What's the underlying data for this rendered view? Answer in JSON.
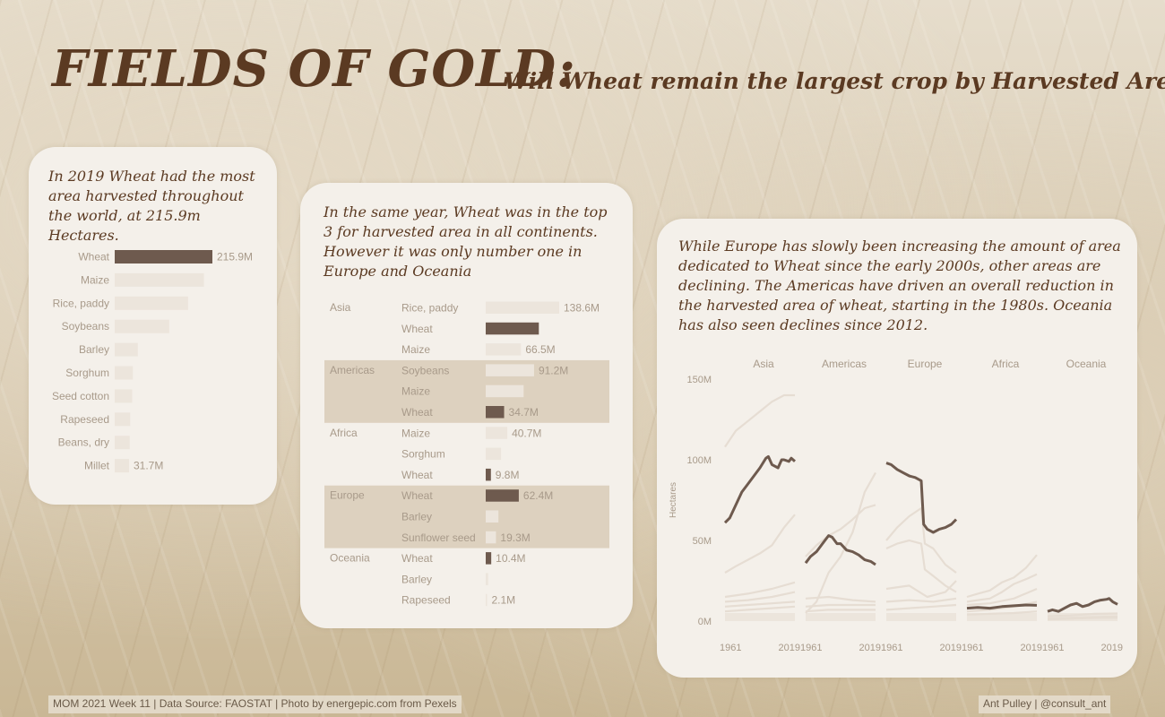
{
  "header": {
    "title": "FIELDS OF GOLD:",
    "subtitle": "Will Wheat remain the largest crop by Harvested Area?"
  },
  "card1": {
    "text": "In 2019 Wheat had the most area harvested throughout the world, at 215.9m Hectares."
  },
  "card2": {
    "text": "In the same year, Wheat was in the top 3 for harvested area in all continents. However it was only number one in Europe and Oceania"
  },
  "card3": {
    "text": "While Europe has slowly been increasing the amount of area dedicated to Wheat since the early 2000s, other areas are declining. The Americas have driven an overall reduction in the harvested area of wheat, starting in the 1980s. Oceania has also seen declines since 2012."
  },
  "colors": {
    "wheat": "#6e5a4e",
    "other": "#ece5dc",
    "band": "#ddd1bf",
    "text_brown": "#5b3a22",
    "label": "#a89a8a",
    "faint_line": "#e6ddd3"
  },
  "chart_data": [
    {
      "type": "bar",
      "orientation": "horizontal",
      "categories": [
        "Wheat",
        "Maize",
        "Rice, paddy",
        "Soybeans",
        "Barley",
        "Sorghum",
        "Seed cotton",
        "Rapeseed",
        "Beans, dry",
        "Millet"
      ],
      "values": [
        215.9,
        197.2,
        162.1,
        120.5,
        51.1,
        40.1,
        38.6,
        34.2,
        33.1,
        31.7
      ],
      "unit": "M",
      "value_labels": [
        "215.9M",
        "",
        "",
        "",
        "",
        "",
        "",
        "",
        "",
        "31.7M"
      ],
      "highlight": "Wheat"
    },
    {
      "type": "bar",
      "orientation": "horizontal",
      "groups": [
        {
          "name": "Asia",
          "banded": false,
          "items": [
            {
              "crop": "Rice, paddy",
              "value": 138.6,
              "label": "138.6M"
            },
            {
              "crop": "Wheat",
              "value": 100.2,
              "label": ""
            },
            {
              "crop": "Maize",
              "value": 66.5,
              "label": "66.5M"
            }
          ]
        },
        {
          "name": "Americas",
          "banded": true,
          "items": [
            {
              "crop": "Soybeans",
              "value": 91.2,
              "label": "91.2M"
            },
            {
              "crop": "Maize",
              "value": 71.5,
              "label": ""
            },
            {
              "crop": "Wheat",
              "value": 34.7,
              "label": "34.7M"
            }
          ]
        },
        {
          "name": "Africa",
          "banded": false,
          "items": [
            {
              "crop": "Maize",
              "value": 40.7,
              "label": "40.7M"
            },
            {
              "crop": "Sorghum",
              "value": 28.9,
              "label": ""
            },
            {
              "crop": "Wheat",
              "value": 9.8,
              "label": "9.8M"
            }
          ]
        },
        {
          "name": "Europe",
          "banded": true,
          "items": [
            {
              "crop": "Wheat",
              "value": 62.4,
              "label": "62.4M"
            },
            {
              "crop": "Barley",
              "value": 24.0,
              "label": ""
            },
            {
              "crop": "Sunflower seed",
              "value": 19.3,
              "label": "19.3M"
            }
          ]
        },
        {
          "name": "Oceania",
          "banded": false,
          "items": [
            {
              "crop": "Wheat",
              "value": 10.4,
              "label": "10.4M"
            },
            {
              "crop": "Barley",
              "value": 4.7,
              "label": ""
            },
            {
              "crop": "Rapeseed",
              "value": 2.1,
              "label": "2.1M"
            }
          ]
        }
      ],
      "highlight": "Wheat"
    },
    {
      "type": "line",
      "ylabel": "Hectares",
      "ylim": [
        0,
        150
      ],
      "yticks": [
        0,
        50,
        100,
        150
      ],
      "ytick_labels": [
        "0M",
        "50M",
        "100M",
        "150M"
      ],
      "x_start": 1961,
      "x_end": 2019,
      "panels": [
        {
          "name": "Asia",
          "wheat": [
            [
              1961,
              61
            ],
            [
              1965,
              64
            ],
            [
              1970,
              72
            ],
            [
              1975,
              80
            ],
            [
              1980,
              85
            ],
            [
              1985,
              90
            ],
            [
              1990,
              95
            ],
            [
              1995,
              101
            ],
            [
              1997,
              102
            ],
            [
              2000,
              97
            ],
            [
              2005,
              95
            ],
            [
              2008,
              100
            ],
            [
              2010,
              100
            ],
            [
              2014,
              99
            ],
            [
              2016,
              101
            ],
            [
              2019,
              99
            ]
          ],
          "others": [
            [
              [
                1961,
                108
              ],
              [
                1970,
                118
              ],
              [
                1980,
                124
              ],
              [
                1990,
                130
              ],
              [
                2000,
                136
              ],
              [
                2010,
                140
              ],
              [
                2019,
                140
              ]
            ],
            [
              [
                1961,
                30
              ],
              [
                1970,
                34
              ],
              [
                1980,
                38
              ],
              [
                1990,
                42
              ],
              [
                2000,
                47
              ],
              [
                2010,
                58
              ],
              [
                2019,
                66
              ]
            ],
            [
              [
                1961,
                15
              ],
              [
                1980,
                17
              ],
              [
                2000,
                20
              ],
              [
                2019,
                24
              ]
            ],
            [
              [
                1961,
                12
              ],
              [
                1980,
                13
              ],
              [
                2000,
                15
              ],
              [
                2019,
                18
              ]
            ],
            [
              [
                1961,
                9
              ],
              [
                1980,
                10
              ],
              [
                2000,
                11
              ],
              [
                2019,
                12
              ]
            ],
            [
              [
                1961,
                6
              ],
              [
                1980,
                7
              ],
              [
                2000,
                8
              ],
              [
                2019,
                9
              ]
            ]
          ]
        },
        {
          "name": "Americas",
          "wheat": [
            [
              1961,
              36
            ],
            [
              1965,
              40
            ],
            [
              1970,
              43
            ],
            [
              1975,
              48
            ],
            [
              1980,
              53
            ],
            [
              1983,
              52
            ],
            [
              1987,
              48
            ],
            [
              1990,
              48
            ],
            [
              1995,
              44
            ],
            [
              2000,
              43
            ],
            [
              2005,
              41
            ],
            [
              2010,
              38
            ],
            [
              2015,
              37
            ],
            [
              2019,
              35
            ]
          ],
          "others": [
            [
              [
                1961,
                40
              ],
              [
                1970,
                47
              ],
              [
                1980,
                53
              ],
              [
                1990,
                57
              ],
              [
                2000,
                63
              ],
              [
                2010,
                70
              ],
              [
                2019,
                72
              ]
            ],
            [
              [
                1961,
                5
              ],
              [
                1970,
                12
              ],
              [
                1980,
                30
              ],
              [
                1990,
                40
              ],
              [
                2000,
                55
              ],
              [
                2010,
                80
              ],
              [
                2019,
                92
              ]
            ],
            [
              [
                1961,
                14
              ],
              [
                1980,
                15
              ],
              [
                2000,
                13
              ],
              [
                2019,
                12
              ]
            ],
            [
              [
                1961,
                9
              ],
              [
                1980,
                10
              ],
              [
                2000,
                10
              ],
              [
                2019,
                10
              ]
            ],
            [
              [
                1961,
                6
              ],
              [
                1980,
                7
              ],
              [
                2000,
                7
              ],
              [
                2019,
                7
              ]
            ]
          ]
        },
        {
          "name": "Europe",
          "wheat": [
            [
              1961,
              98
            ],
            [
              1965,
              97
            ],
            [
              1970,
              94
            ],
            [
              1975,
              92
            ],
            [
              1980,
              90
            ],
            [
              1985,
              89
            ],
            [
              1990,
              87
            ],
            [
              1992,
              60
            ],
            [
              1995,
              57
            ],
            [
              2000,
              55
            ],
            [
              2005,
              57
            ],
            [
              2010,
              58
            ],
            [
              2015,
              60
            ],
            [
              2019,
              63
            ]
          ],
          "others": [
            [
              [
                1961,
                50
              ],
              [
                1970,
                58
              ],
              [
                1980,
                65
              ],
              [
                1990,
                70
              ],
              [
                1993,
                48
              ],
              [
                2000,
                45
              ],
              [
                2010,
                35
              ],
              [
                2019,
                30
              ]
            ],
            [
              [
                1961,
                45
              ],
              [
                1970,
                48
              ],
              [
                1980,
                50
              ],
              [
                1990,
                48
              ],
              [
                1993,
                32
              ],
              [
                2000,
                28
              ],
              [
                2010,
                22
              ],
              [
                2019,
                18
              ]
            ],
            [
              [
                1961,
                20
              ],
              [
                1980,
                22
              ],
              [
                1995,
                15
              ],
              [
                2010,
                18
              ],
              [
                2019,
                25
              ]
            ],
            [
              [
                1961,
                12
              ],
              [
                1980,
                13
              ],
              [
                2000,
                12
              ],
              [
                2019,
                14
              ]
            ],
            [
              [
                1961,
                7
              ],
              [
                1980,
                8
              ],
              [
                2000,
                9
              ],
              [
                2019,
                10
              ]
            ]
          ]
        },
        {
          "name": "Africa",
          "wheat": [
            [
              1961,
              8
            ],
            [
              1970,
              8.5
            ],
            [
              1980,
              8
            ],
            [
              1990,
              9
            ],
            [
              2000,
              9.5
            ],
            [
              2010,
              10
            ],
            [
              2019,
              9.8
            ]
          ],
          "others": [
            [
              [
                1961,
                15
              ],
              [
                1970,
                17
              ],
              [
                1980,
                19
              ],
              [
                1990,
                24
              ],
              [
                2000,
                27
              ],
              [
                2010,
                33
              ],
              [
                2019,
                41
              ]
            ],
            [
              [
                1961,
                12
              ],
              [
                1970,
                13
              ],
              [
                1980,
                14
              ],
              [
                1990,
                18
              ],
              [
                2000,
                23
              ],
              [
                2010,
                26
              ],
              [
                2019,
                29
              ]
            ],
            [
              [
                1961,
                10
              ],
              [
                1980,
                11
              ],
              [
                2000,
                14
              ],
              [
                2019,
                20
              ]
            ],
            [
              [
                1961,
                6
              ],
              [
                1980,
                7
              ],
              [
                2000,
                9
              ],
              [
                2019,
                12
              ]
            ],
            [
              [
                1961,
                4
              ],
              [
                1980,
                4.5
              ],
              [
                2000,
                5
              ],
              [
                2019,
                6
              ]
            ]
          ]
        },
        {
          "name": "Oceania",
          "wheat": [
            [
              1961,
              6
            ],
            [
              1965,
              7
            ],
            [
              1970,
              6
            ],
            [
              1975,
              8
            ],
            [
              1980,
              10
            ],
            [
              1985,
              11
            ],
            [
              1990,
              9
            ],
            [
              1995,
              10
            ],
            [
              2000,
              12
            ],
            [
              2005,
              13
            ],
            [
              2010,
              13.5
            ],
            [
              2012,
              14
            ],
            [
              2015,
              12
            ],
            [
              2019,
              10.4
            ]
          ],
          "others": [
            [
              [
                1961,
                3
              ],
              [
                1980,
                3.5
              ],
              [
                2000,
                4.5
              ],
              [
                2019,
                4.7
              ]
            ],
            [
              [
                1961,
                1
              ],
              [
                1980,
                1.5
              ],
              [
                2000,
                2
              ],
              [
                2019,
                2.1
              ]
            ],
            [
              [
                1961,
                1.5
              ],
              [
                1980,
                2
              ],
              [
                2000,
                2.5
              ],
              [
                2019,
                2.8
              ]
            ]
          ]
        }
      ]
    }
  ],
  "footer": {
    "left": "MOM 2021 Week 11 | Data Source: FAOSTAT | Photo by energepic.com from Pexels",
    "right": "Ant Pulley | @consult_ant"
  }
}
